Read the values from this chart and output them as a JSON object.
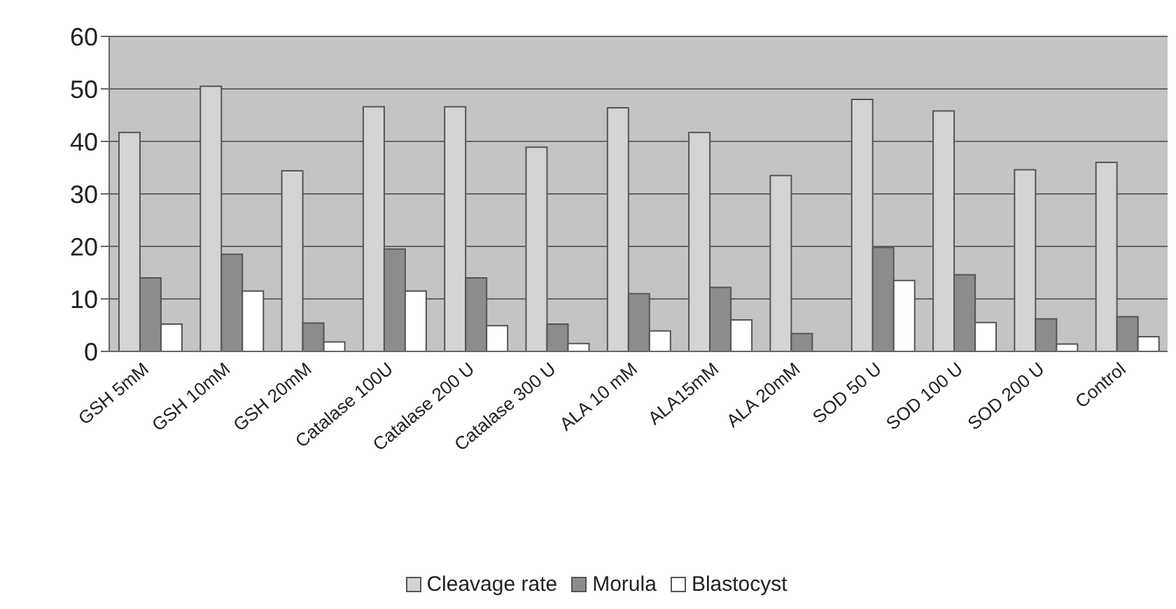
{
  "chart_data": {
    "type": "bar",
    "categories": [
      "GSH 5mM",
      "GSH 10mM",
      "GSH 20mM",
      "Catalase 100U",
      "Catalase 200 U",
      "Catalase 300 U",
      "ALA 10 mM",
      "ALA15mM",
      "ALA 20mM",
      "SOD 50 U",
      "SOD 100 U",
      "SOD 200 U",
      "Control"
    ],
    "series": [
      {
        "name": "Cleavage rate",
        "color": "#d4d4d4",
        "values": [
          41.7,
          50.5,
          34.4,
          46.6,
          46.6,
          38.9,
          46.4,
          41.7,
          33.5,
          48,
          45.8,
          34.6,
          36
        ]
      },
      {
        "name": "Morula",
        "color": "#8c8c8c",
        "values": [
          14,
          18.5,
          5.4,
          19.5,
          14,
          5.2,
          11,
          12.2,
          3.4,
          19.8,
          14.6,
          6.2,
          6.6
        ]
      },
      {
        "name": "Blastocyst",
        "color": "#ffffff",
        "values": [
          5.2,
          11.5,
          1.8,
          11.5,
          4.9,
          1.5,
          3.9,
          6,
          0,
          13.5,
          5.5,
          1.4,
          2.8
        ]
      }
    ],
    "ylim": [
      0,
      60
    ],
    "yticks": [
      0,
      10,
      20,
      30,
      40,
      50,
      60
    ],
    "grid": "y",
    "legend": "bottom"
  }
}
